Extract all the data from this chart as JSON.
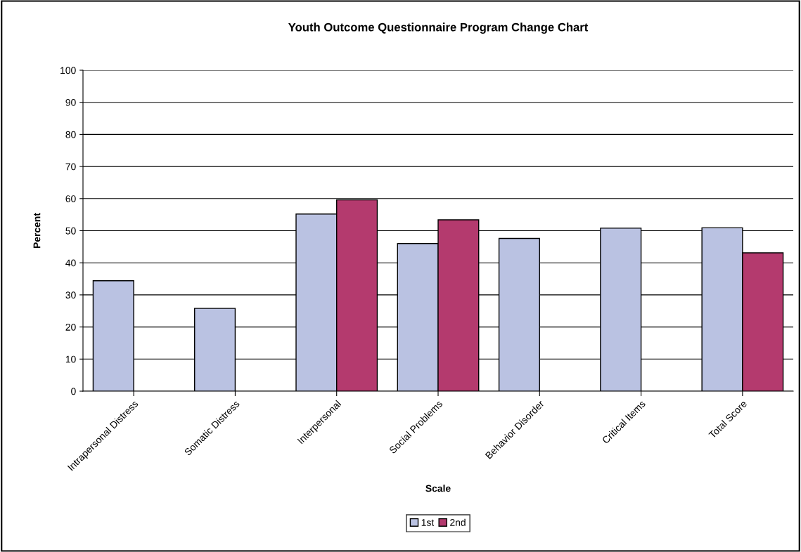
{
  "chart_data": {
    "type": "bar",
    "title": "Youth Outcome Questionnaire Program Change Chart",
    "xlabel": "Scale",
    "ylabel": "Percent",
    "categories": [
      "Intrapersonal Distress",
      "Somatic Distress",
      "Interpersonal",
      "Social Problems",
      "Behavior Disorder",
      "Critical Items",
      "Total Score"
    ],
    "series": [
      {
        "name": "1st",
        "color": "#bac2e2",
        "values": [
          34.4,
          25.8,
          55.2,
          46.0,
          47.6,
          50.8,
          50.9
        ]
      },
      {
        "name": "2nd",
        "color": "#b43a6e",
        "values": [
          null,
          null,
          59.6,
          53.4,
          null,
          null,
          43.1
        ]
      }
    ],
    "ylim": [
      0,
      100
    ],
    "yticks": [
      0,
      10,
      20,
      30,
      40,
      50,
      60,
      70,
      80,
      90,
      100
    ],
    "grid": "y",
    "legend": "bottom"
  }
}
